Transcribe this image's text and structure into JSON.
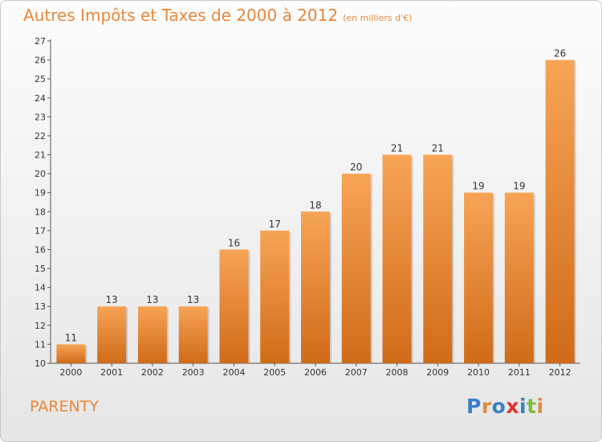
{
  "title": "Autres Impôts et Taxes de 2000 à 2012",
  "subtitle": "(en milliers d'€)",
  "commune": "PARENTY",
  "logo": {
    "text": "Proxiti",
    "letters": [
      {
        "char": "P",
        "color": "#3a7fc4"
      },
      {
        "char": "r",
        "color": "#e8873a"
      },
      {
        "char": "o",
        "color": "#3a7fc4"
      },
      {
        "char": "x",
        "color": "#e2312d"
      },
      {
        "char": "i",
        "color": "#3a7fc4"
      },
      {
        "char": "t",
        "color": "#7dbb3b"
      },
      {
        "char": "i",
        "color": "#e8873a"
      }
    ]
  },
  "chart_data": {
    "type": "bar",
    "categories": [
      "2000",
      "2001",
      "2002",
      "2003",
      "2004",
      "2005",
      "2006",
      "2007",
      "2008",
      "2009",
      "2010",
      "2011",
      "2012"
    ],
    "values": [
      11,
      13,
      13,
      13,
      16,
      17,
      18,
      20,
      21,
      21,
      19,
      19,
      26
    ],
    "data_labels": [
      "11",
      "13",
      "13",
      "13",
      "16",
      "17",
      "18",
      "20",
      "21",
      "21",
      "19",
      "19",
      "26"
    ],
    "ylim": [
      10,
      27
    ],
    "yticks": [
      "10",
      "11",
      "12",
      "13",
      "14",
      "15",
      "16",
      "17",
      "18",
      "19",
      "20",
      "21",
      "22",
      "23",
      "24",
      "25",
      "26",
      "27"
    ],
    "grid": false,
    "colors": {
      "bar_top": "#f7a456",
      "bar_bottom": "#d06b18",
      "text": "#e8873a",
      "axis": "#555555"
    }
  }
}
